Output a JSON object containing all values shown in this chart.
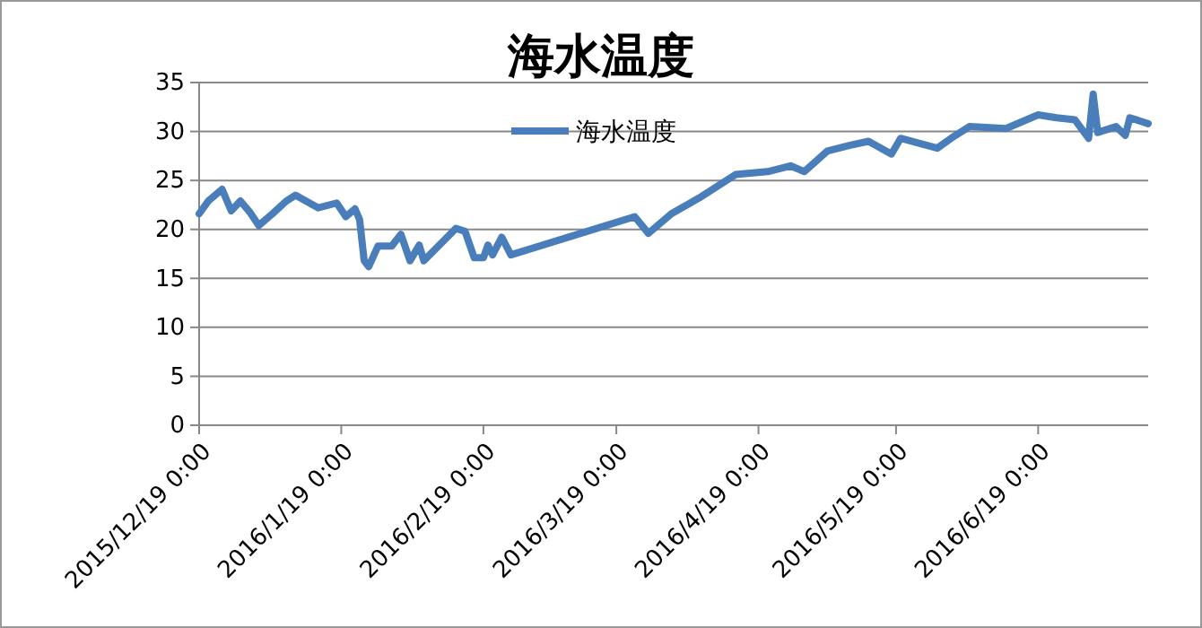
{
  "chart_data": {
    "type": "line",
    "title": "海水温度",
    "legend": "top",
    "grid": "y",
    "line_style": "solid",
    "marker": "none",
    "xlim": [
      "2015-12-19",
      "2016-07-13"
    ],
    "xticks": [
      {
        "value": "2015-12-19",
        "label": "2015/12/19 0:00"
      },
      {
        "value": "2016-01-19",
        "label": "2016/1/19 0:00"
      },
      {
        "value": "2016-02-19",
        "label": "2016/2/19 0:00"
      },
      {
        "value": "2016-03-19",
        "label": "2016/3/19 0:00"
      },
      {
        "value": "2016-04-19",
        "label": "2016/4/19 0:00"
      },
      {
        "value": "2016-05-19",
        "label": "2016/5/19 0:00"
      },
      {
        "value": "2016-06-19",
        "label": "2016/6/19 0:00"
      }
    ],
    "ylim": [
      0,
      35
    ],
    "yticks": [
      0,
      5,
      10,
      15,
      20,
      25,
      30,
      35
    ],
    "x": [
      "2015-12-19",
      "2015-12-21",
      "2015-12-24",
      "2015-12-26",
      "2015-12-28",
      "2015-12-30",
      "2016-01-01",
      "2016-01-04",
      "2016-01-07",
      "2016-01-09",
      "2016-01-14",
      "2016-01-18",
      "2016-01-20",
      "2016-01-22",
      "2016-01-23",
      "2016-01-24",
      "2016-01-25",
      "2016-01-27",
      "2016-01-30",
      "2016-02-01",
      "2016-02-03",
      "2016-02-05",
      "2016-02-06",
      "2016-02-13",
      "2016-02-15",
      "2016-02-17",
      "2016-02-19",
      "2016-02-20",
      "2016-02-21",
      "2016-02-23",
      "2016-02-25",
      "2016-03-23",
      "2016-03-26",
      "2016-03-31",
      "2016-04-06",
      "2016-04-14",
      "2016-04-21",
      "2016-04-26",
      "2016-04-29",
      "2016-05-04",
      "2016-05-09",
      "2016-05-13",
      "2016-05-18",
      "2016-05-20",
      "2016-05-28",
      "2016-05-31",
      "2016-06-04",
      "2016-06-12",
      "2016-06-19",
      "2016-06-23",
      "2016-06-27",
      "2016-06-30",
      "2016-07-01",
      "2016-07-02",
      "2016-07-06",
      "2016-07-08",
      "2016-07-09",
      "2016-07-13"
    ],
    "series": [
      {
        "name": "海水温度",
        "color": "#4a7ebb",
        "values": [
          21.6,
          22.9,
          24.1,
          21.9,
          22.9,
          21.8,
          20.4,
          21.6,
          22.9,
          23.5,
          22.2,
          22.7,
          21.3,
          22.1,
          21.0,
          16.8,
          16.2,
          18.3,
          18.3,
          19.5,
          16.8,
          18.4,
          16.8,
          20.1,
          19.8,
          17.1,
          17.1,
          18.4,
          17.4,
          19.2,
          17.4,
          21.3,
          19.6,
          21.6,
          23.2,
          25.6,
          25.9,
          26.5,
          25.9,
          28.0,
          28.6,
          29.0,
          27.7,
          29.3,
          28.3,
          29.3,
          30.5,
          30.3,
          31.7,
          31.4,
          31.2,
          29.3,
          33.8,
          29.9,
          30.5,
          29.6,
          31.4,
          30.8
        ]
      }
    ]
  }
}
